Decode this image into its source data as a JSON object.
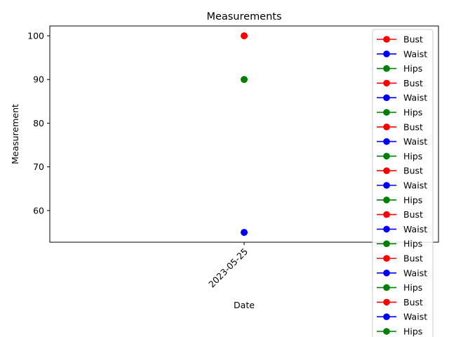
{
  "colors": {
    "bust": "#ff0000",
    "waist": "#0000ff",
    "hips": "#008000"
  },
  "chart_data": {
    "type": "line",
    "title": "Measurements",
    "xlabel": "Date",
    "ylabel": "Measurement",
    "x": [
      "2023-05-25"
    ],
    "xticks": [
      "2023-05-25"
    ],
    "yticks": [
      "60",
      "70",
      "80",
      "90",
      "100"
    ],
    "ylim": [
      52.75,
      102.25
    ],
    "grid": false,
    "legend_position": "right",
    "series": [
      {
        "name": "Bust",
        "color": "#ff0000",
        "values": [
          100
        ]
      },
      {
        "name": "Waist",
        "color": "#0000ff",
        "values": [
          55
        ]
      },
      {
        "name": "Hips",
        "color": "#008000",
        "values": [
          90
        ]
      },
      {
        "name": "Bust",
        "color": "#ff0000",
        "values": [
          100
        ]
      },
      {
        "name": "Waist",
        "color": "#0000ff",
        "values": [
          55
        ]
      },
      {
        "name": "Hips",
        "color": "#008000",
        "values": [
          90
        ]
      },
      {
        "name": "Bust",
        "color": "#ff0000",
        "values": [
          100
        ]
      },
      {
        "name": "Waist",
        "color": "#0000ff",
        "values": [
          55
        ]
      },
      {
        "name": "Hips",
        "color": "#008000",
        "values": [
          90
        ]
      },
      {
        "name": "Bust",
        "color": "#ff0000",
        "values": [
          100
        ]
      },
      {
        "name": "Waist",
        "color": "#0000ff",
        "values": [
          55
        ]
      },
      {
        "name": "Hips",
        "color": "#008000",
        "values": [
          90
        ]
      },
      {
        "name": "Bust",
        "color": "#ff0000",
        "values": [
          100
        ]
      },
      {
        "name": "Waist",
        "color": "#0000ff",
        "values": [
          55
        ]
      },
      {
        "name": "Hips",
        "color": "#008000",
        "values": [
          90
        ]
      },
      {
        "name": "Bust",
        "color": "#ff0000",
        "values": [
          100
        ]
      },
      {
        "name": "Waist",
        "color": "#0000ff",
        "values": [
          55
        ]
      },
      {
        "name": "Hips",
        "color": "#008000",
        "values": [
          90
        ]
      },
      {
        "name": "Bust",
        "color": "#ff0000",
        "values": [
          100
        ]
      },
      {
        "name": "Waist",
        "color": "#0000ff",
        "values": [
          55
        ]
      },
      {
        "name": "Hips",
        "color": "#008000",
        "values": [
          90
        ]
      }
    ]
  }
}
